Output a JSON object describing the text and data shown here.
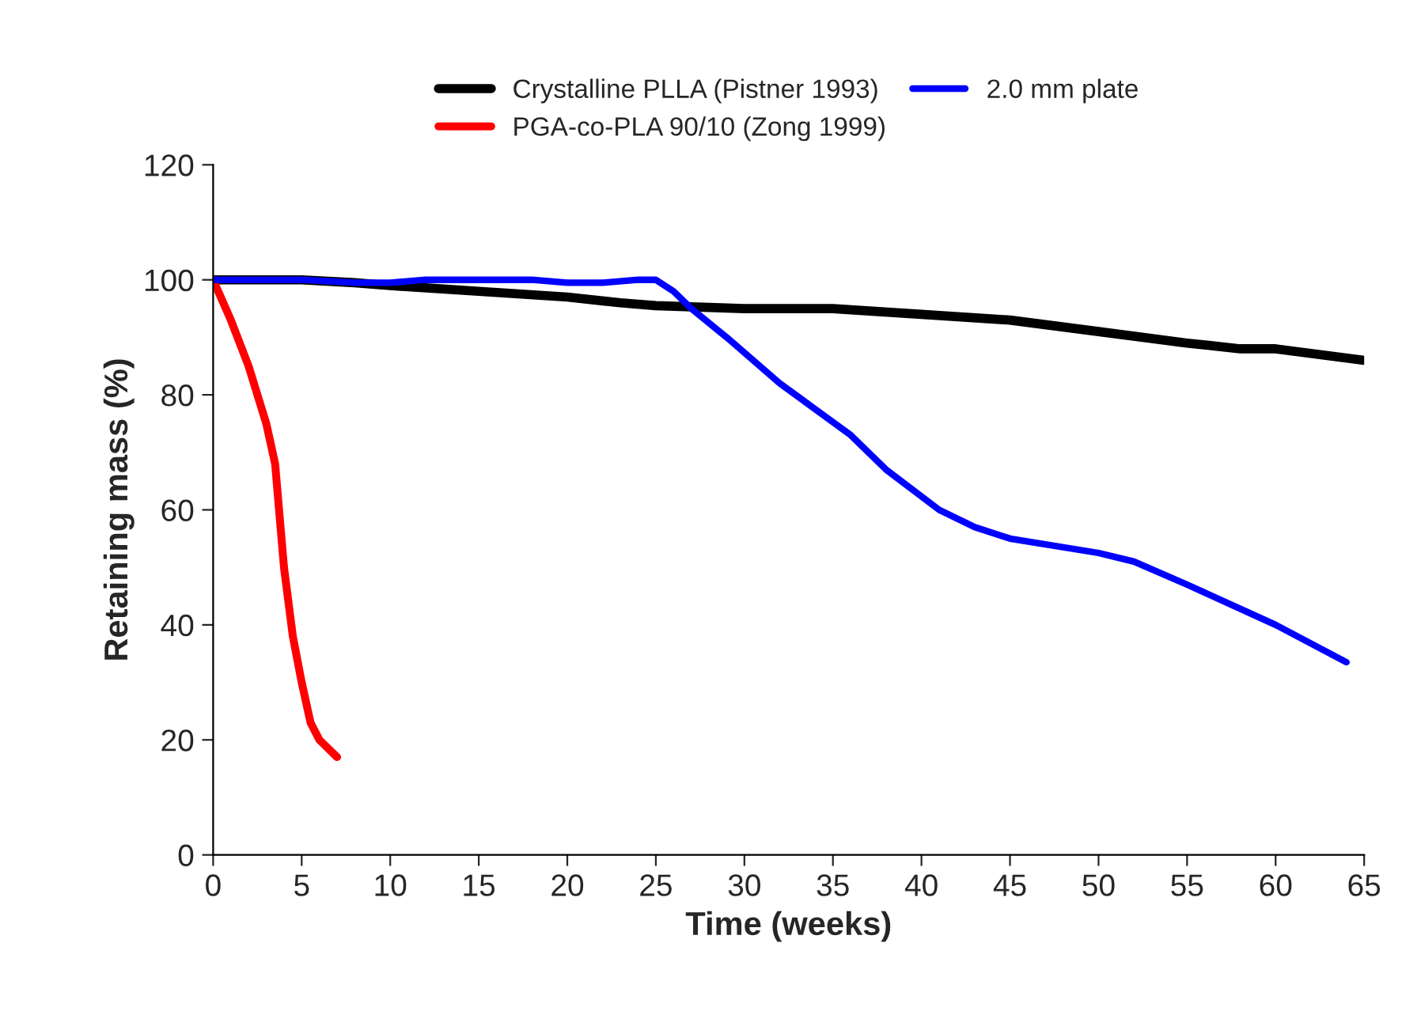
{
  "chart_data": {
    "type": "line",
    "xlabel": "Time (weeks)",
    "ylabel": "Retaining mass (%)",
    "xlim": [
      0,
      65
    ],
    "xticks": [
      0,
      5,
      10,
      15,
      20,
      25,
      30,
      35,
      40,
      45,
      50,
      55,
      60,
      65
    ],
    "ylim": [
      0,
      120
    ],
    "yticks": [
      0,
      20,
      40,
      60,
      80,
      100,
      120
    ],
    "grid": false,
    "legend": "top",
    "marker": "none",
    "line_style": "solid",
    "series": [
      {
        "name": "Crystalline PLLA (Pistner 1993)",
        "color": "#000000",
        "x": [
          0,
          5,
          8,
          10,
          15,
          20,
          23,
          25,
          30,
          35,
          40,
          45,
          50,
          55,
          58,
          60,
          65
        ],
        "values": [
          100,
          100,
          99.5,
          99,
          98,
          97,
          96,
          95.5,
          95,
          95,
          94,
          93,
          91,
          89,
          88,
          88,
          86
        ]
      },
      {
        "name": "PGA-co-PLA 90/10 (Zong 1999)",
        "color": "#ff0000",
        "x": [
          0,
          1,
          2,
          3,
          3.5,
          4,
          4.5,
          5,
          5.5,
          6,
          7
        ],
        "values": [
          100,
          93,
          85,
          75,
          68,
          50,
          38,
          30,
          23,
          20,
          17
        ]
      },
      {
        "name": "2.0 mm plate",
        "color": "#0000ff",
        "x": [
          0,
          5,
          8,
          10,
          12,
          18,
          20,
          22,
          24,
          25,
          26,
          27,
          29,
          32,
          36,
          38,
          41,
          43,
          45,
          50,
          52,
          55,
          60,
          64
        ],
        "values": [
          100,
          100,
          99.5,
          99.5,
          100,
          100,
          99.5,
          99.5,
          100,
          100,
          98,
          95,
          90,
          82,
          73,
          67,
          60,
          57,
          55,
          52.5,
          51,
          47,
          40,
          33.5
        ]
      }
    ]
  }
}
